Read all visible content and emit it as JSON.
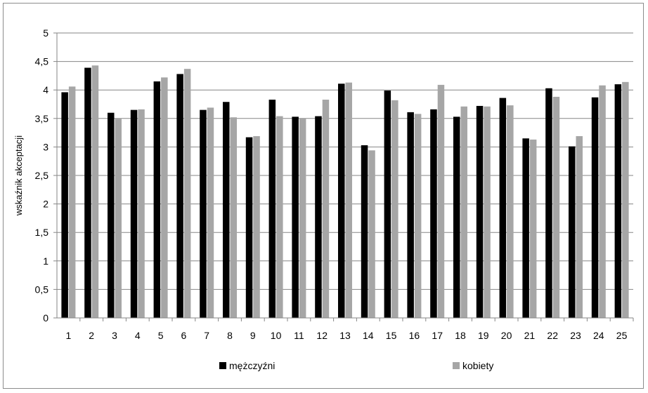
{
  "chart_data": {
    "type": "bar",
    "ylabel": "wskaźnik akceptacji",
    "xlabel": "",
    "title": "",
    "ylim": [
      0,
      5
    ],
    "ytick_step": 0.5,
    "ytick_labels": [
      "0",
      "0,5",
      "1",
      "1,5",
      "2",
      "2,5",
      "3",
      "3,5",
      "4",
      "4,5",
      "5"
    ],
    "categories": [
      "1",
      "2",
      "3",
      "4",
      "5",
      "6",
      "7",
      "8",
      "9",
      "10",
      "11",
      "12",
      "13",
      "14",
      "15",
      "16",
      "17",
      "18",
      "19",
      "20",
      "21",
      "22",
      "23",
      "24",
      "25"
    ],
    "grid": true,
    "legend_position": "bottom",
    "series": [
      {
        "name": "mężczyźni",
        "color": "#000000",
        "values": [
          3.96,
          4.39,
          3.6,
          3.65,
          4.15,
          4.28,
          3.65,
          3.79,
          3.17,
          3.83,
          3.53,
          3.54,
          4.11,
          3.03,
          3.99,
          3.61,
          3.66,
          3.53,
          3.72,
          3.86,
          3.15,
          4.03,
          3.01,
          3.87,
          4.1
        ]
      },
      {
        "name": "kobiety",
        "color": "#a6a6a6",
        "values": [
          4.06,
          4.43,
          3.5,
          3.66,
          4.22,
          4.37,
          3.69,
          3.52,
          3.19,
          3.54,
          3.5,
          3.83,
          4.13,
          2.94,
          3.82,
          3.58,
          4.09,
          3.71,
          3.71,
          3.73,
          3.13,
          3.88,
          3.19,
          4.08,
          4.14
        ]
      }
    ]
  }
}
